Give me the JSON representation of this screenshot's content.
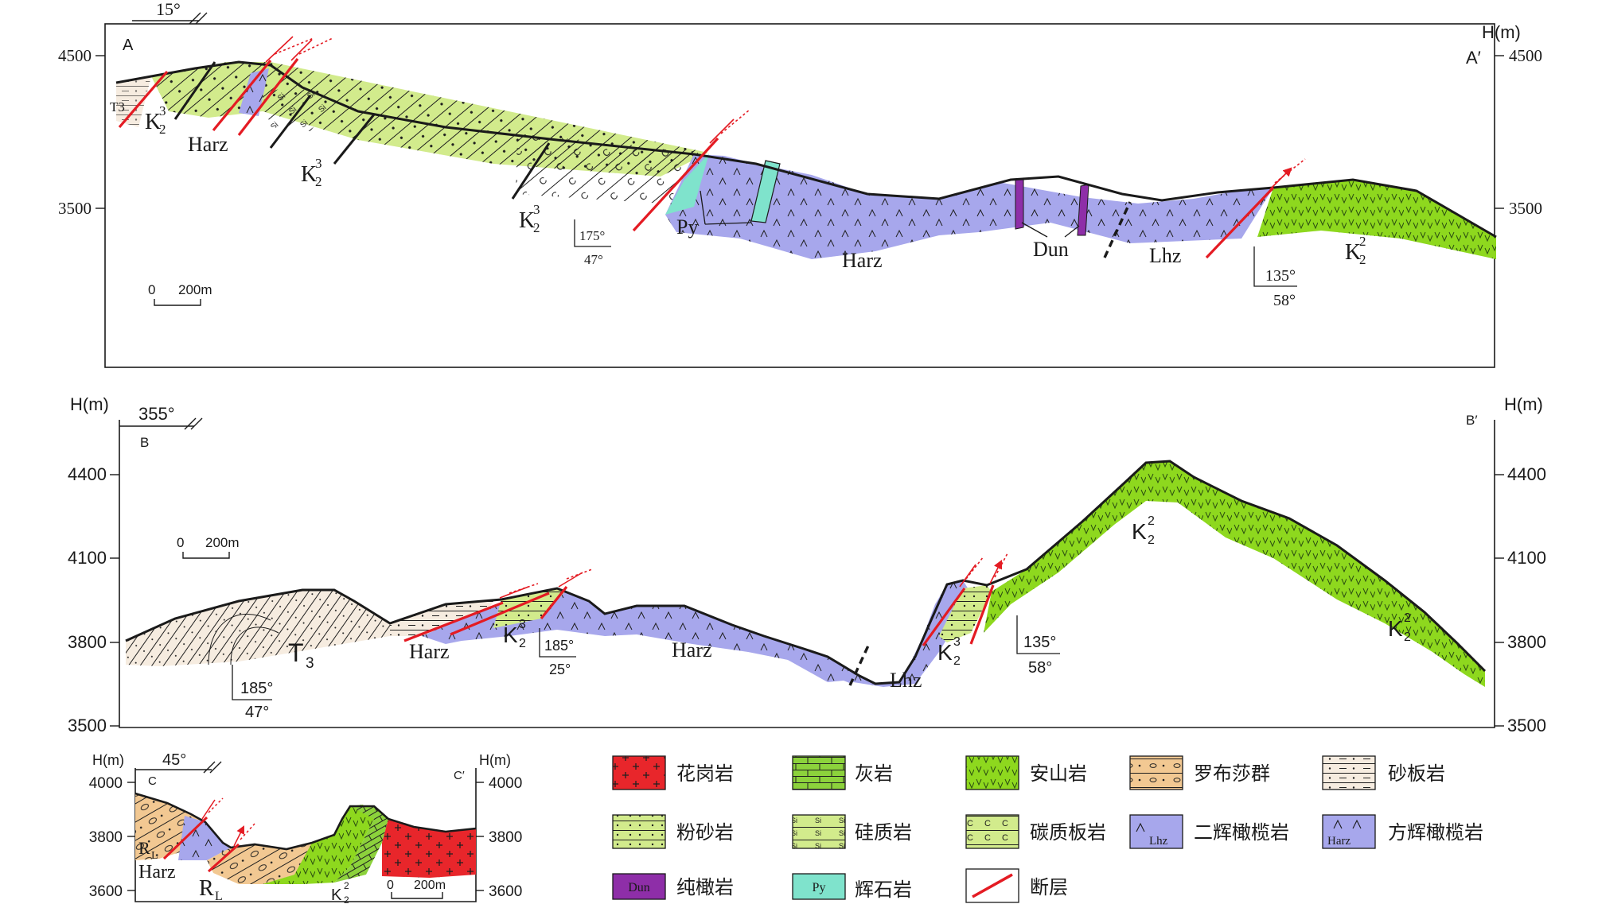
{
  "sections": {
    "a": {
      "orientation": "15°",
      "start_label": "A",
      "end_label": "A′",
      "axis_unit": "H(m)",
      "ticks": [
        "4500",
        "3500"
      ],
      "ticks_right": [
        "4500",
        "3500"
      ],
      "scale": {
        "zero": "0",
        "length": "200m"
      },
      "units": {
        "t3": "T3",
        "k23_a": "K",
        "harz_a": "Harz",
        "k23_b": "K",
        "k23_c": "K",
        "py": "Py",
        "harz_b": "Harz",
        "dun": "Dun",
        "lhz": "Lhz",
        "k22": "K"
      },
      "attitudes": [
        {
          "dir": "175°",
          "dip": "47°"
        },
        {
          "dir": "135°",
          "dip": "58°"
        }
      ]
    },
    "b": {
      "orientation": "355°",
      "start_label": "B",
      "end_label": "B′",
      "axis_unit": "H(m)",
      "ticks": [
        "4400",
        "4100",
        "3800",
        "3500"
      ],
      "ticks_right": [
        "4400",
        "4100",
        "3800",
        "3500"
      ],
      "scale": {
        "zero": "0",
        "length": "200m"
      },
      "units": {
        "t3": "T",
        "harz_a": "Harz",
        "k23_a": "K",
        "harz_b": "Harz",
        "lhz": "Lhz",
        "k23_b": "K",
        "k22_a": "K",
        "k22_b": "K"
      },
      "attitudes": [
        {
          "dir": "185°",
          "dip": "47°"
        },
        {
          "dir": "185°",
          "dip": "25°"
        },
        {
          "dir": "135°",
          "dip": "58°"
        }
      ]
    },
    "c": {
      "orientation": "45°",
      "start_label": "C",
      "end_label": "C′",
      "axis_unit": "H(m)",
      "ticks": [
        "4000",
        "3800",
        "3600"
      ],
      "ticks_right": [
        "4000",
        "3800",
        "3600"
      ],
      "scale": {
        "zero": "0",
        "length": "200m"
      },
      "units": {
        "rl_a": "R",
        "harz": "Harz",
        "rl_b": "R",
        "k22": "K"
      }
    }
  },
  "legend": [
    {
      "key": "granite",
      "label": "花岗岩",
      "symbol": ""
    },
    {
      "key": "limestone",
      "label": "灰岩",
      "symbol": ""
    },
    {
      "key": "andesite",
      "label": "安山岩",
      "symbol": ""
    },
    {
      "key": "luobusha",
      "label": "罗布莎群",
      "symbol": ""
    },
    {
      "key": "sandslate",
      "label": "砂板岩",
      "symbol": ""
    },
    {
      "key": "siltstone",
      "label": "粉砂岩",
      "symbol": ""
    },
    {
      "key": "siliceous",
      "label": "硅质岩",
      "symbol": ""
    },
    {
      "key": "carbonslate",
      "label": "碳质板岩",
      "symbol": ""
    },
    {
      "key": "lherzolite",
      "label": "二辉橄榄岩",
      "symbol": "Lhz"
    },
    {
      "key": "harzburgite",
      "label": "方辉橄榄岩",
      "symbol": "Harz"
    },
    {
      "key": "dunite",
      "label": "纯橄岩",
      "symbol": "Dun"
    },
    {
      "key": "pyroxenite",
      "label": "辉石岩",
      "symbol": "Py"
    },
    {
      "key": "fault",
      "label": "断层",
      "symbol": ""
    }
  ],
  "colors": {
    "granite": "#e8262b",
    "limestone": "#8cd23c",
    "andesite": "#8ed81e",
    "silt_green": "#d2eb8c",
    "ultramafic": "#a7a7ec",
    "dunite": "#8e2ea8",
    "pyroxenite": "#7fe3cc",
    "luobusha": "#f2c892",
    "sandslate": "#f6ece0",
    "fault": "#e41b23"
  }
}
